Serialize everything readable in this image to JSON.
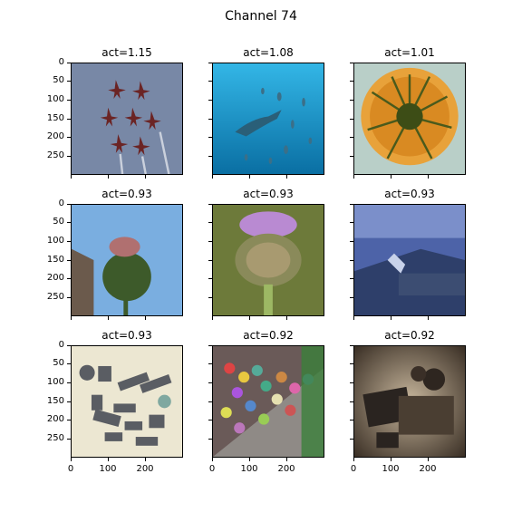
{
  "figure": {
    "title": "Channel 74",
    "y_tick_labels": [
      "0",
      "50",
      "100",
      "150",
      "200",
      "250"
    ],
    "x_tick_labels": [
      "0",
      "100",
      "200"
    ]
  },
  "panels": [
    {
      "title": "act=1.15",
      "subject": "red jet aircraft formation against grey sky"
    },
    {
      "title": "act=1.08",
      "subject": "hammerhead shark and fish in blue water"
    },
    {
      "title": "act=1.01",
      "subject": "orange spiky flower head close-up"
    },
    {
      "title": "act=0.93",
      "subject": "thistle bud against blue sky"
    },
    {
      "title": "act=0.93",
      "subject": "purple artichoke flower"
    },
    {
      "title": "act=0.93",
      "subject": "scuba diver at underwater shipwreck"
    },
    {
      "title": "act=0.93",
      "subject": "metal pipe fittings on beige background"
    },
    {
      "title": "act=0.92",
      "subject": "colorful padlocks on a bridge railing"
    },
    {
      "title": "act=0.92",
      "subject": "sepia photo of a cluttered desk"
    }
  ]
}
